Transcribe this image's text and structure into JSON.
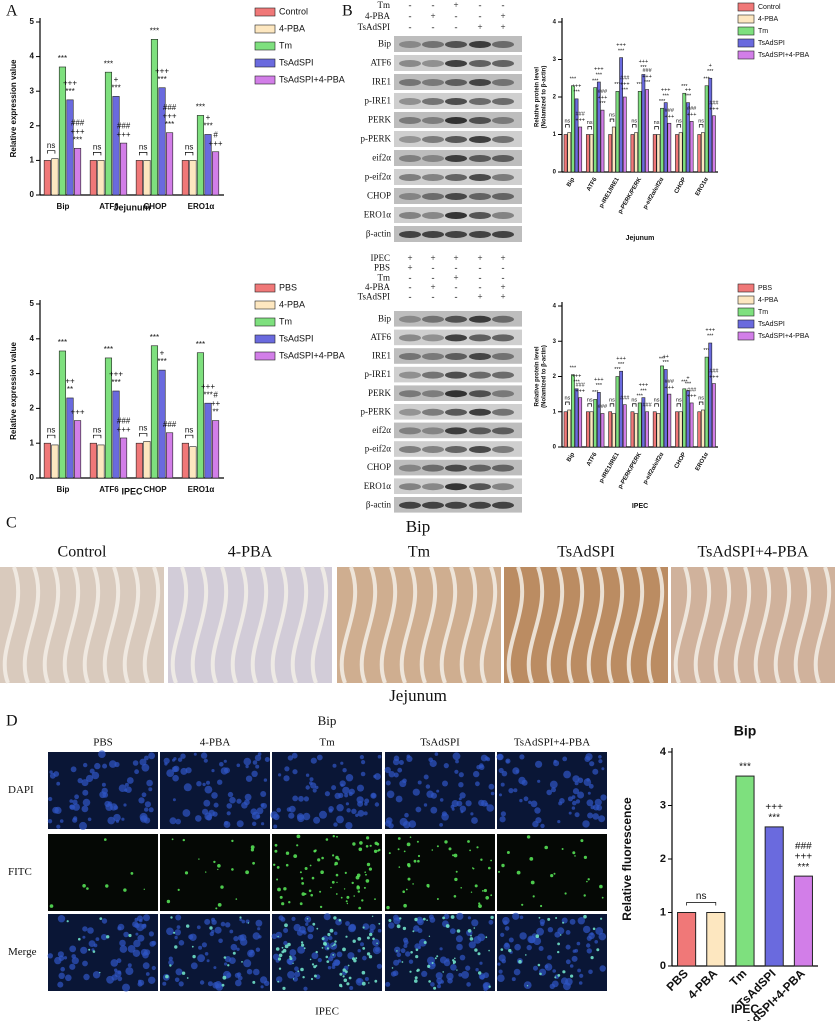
{
  "panel_letters": [
    "A",
    "B",
    "C",
    "D"
  ],
  "chart_data": [
    {
      "type": "bar",
      "ylabel": "Relative expression value",
      "xlabel": "Jejunum",
      "legend": "right",
      "categories": [
        "Bip",
        "ATF6",
        "CHOP",
        "ERO1α"
      ],
      "ylim": [
        0,
        5
      ],
      "yticks": [
        0,
        1,
        2,
        3,
        4,
        5
      ],
      "pair_labels": [
        "ns",
        "ns",
        "ns",
        "ns"
      ],
      "series": [
        {
          "name": "Control",
          "color": "#f07878",
          "values": [
            1,
            1,
            1,
            1
          ],
          "signif": [
            null,
            null,
            null,
            null
          ]
        },
        {
          "name": "4-PBA",
          "color": "#fde7c0",
          "values": [
            1.05,
            1,
            1,
            1
          ],
          "signif": [
            null,
            null,
            null,
            null
          ]
        },
        {
          "name": "Tm",
          "color": "#7ee07e",
          "values": [
            3.7,
            3.55,
            4.5,
            2.3
          ],
          "signif": [
            [
              "***"
            ],
            [
              "***"
            ],
            [
              "***"
            ],
            [
              "***"
            ]
          ]
        },
        {
          "name": "TsAdSPI",
          "color": "#6a6ade",
          "values": [
            2.75,
            2.85,
            3.1,
            1.75
          ],
          "signif": [
            [
              "+++",
              "***"
            ],
            [
              "+",
              "***"
            ],
            [
              "+++",
              "***"
            ],
            [
              "+",
              "***"
            ]
          ]
        },
        {
          "name": "TsAdSPI+4-PBA",
          "color": "#d27ee8",
          "values": [
            1.35,
            1.5,
            1.8,
            1.25
          ],
          "signif": [
            [
              "###",
              "+++",
              "***"
            ],
            [
              "###",
              "+++"
            ],
            [
              "###",
              "+++",
              "***"
            ],
            [
              "#",
              "+++"
            ]
          ]
        }
      ]
    },
    {
      "type": "bar",
      "ylabel": "Relative expression value",
      "xlabel": "IPEC",
      "legend": "right",
      "categories": [
        "Bip",
        "ATF6",
        "CHOP",
        "ERO1α"
      ],
      "ylim": [
        0,
        5
      ],
      "yticks": [
        0,
        1,
        2,
        3,
        4,
        5
      ],
      "pair_labels": [
        "ns",
        "ns",
        "ns",
        "ns"
      ],
      "series": [
        {
          "name": "PBS",
          "color": "#f07878",
          "values": [
            1,
            1,
            1,
            1
          ],
          "signif": [
            null,
            null,
            null,
            null
          ]
        },
        {
          "name": "4-PBA",
          "color": "#fde7c0",
          "values": [
            0.95,
            0.95,
            1.05,
            0.9
          ],
          "signif": [
            null,
            null,
            null,
            null
          ]
        },
        {
          "name": "Tm",
          "color": "#7ee07e",
          "values": [
            3.65,
            3.45,
            3.8,
            3.6
          ],
          "signif": [
            [
              "***"
            ],
            [
              "***"
            ],
            [
              "***"
            ],
            [
              "***"
            ]
          ]
        },
        {
          "name": "TsAdSPI",
          "color": "#6a6ade",
          "values": [
            2.3,
            2.5,
            3.1,
            2.15
          ],
          "signif": [
            [
              "++",
              "**"
            ],
            [
              "+++",
              "***"
            ],
            [
              "+",
              "***"
            ],
            [
              "+++",
              "***"
            ]
          ]
        },
        {
          "name": "TsAdSPI+4-PBA",
          "color": "#d27ee8",
          "values": [
            1.65,
            1.15,
            1.3,
            1.65
          ],
          "signif": [
            [
              "+++"
            ],
            [
              "###",
              "+++"
            ],
            [
              "###"
            ],
            [
              "#",
              "++",
              "**"
            ]
          ]
        }
      ]
    },
    {
      "type": "bar",
      "ylabel": [
        "Relative protein level",
        "(Nolamized to β-actin)"
      ],
      "xlabel": "Jejunum",
      "legend": "right",
      "categories": [
        "Bip",
        "ATF6",
        "p-IRE1/IRE1",
        "p-PERK/PERK",
        "p-eif2α/eif2α",
        "CHOP",
        "ERO1α"
      ],
      "ylim": [
        0,
        4
      ],
      "yticks": [
        0,
        1,
        2,
        3,
        4
      ],
      "pair_labels": [
        "ns",
        "ns",
        "ns",
        "ns",
        "ns",
        "ns",
        "ns"
      ],
      "series": [
        {
          "name": "Control",
          "color": "#f07878",
          "values": [
            1,
            1,
            1,
            1,
            1,
            1,
            1
          ],
          "signif": [
            null,
            null,
            null,
            null,
            null,
            null,
            null
          ]
        },
        {
          "name": "4-PBA",
          "color": "#fde7c0",
          "values": [
            1.05,
            1,
            1.2,
            1.05,
            1,
            1.05,
            1.05
          ],
          "signif": [
            null,
            null,
            null,
            null,
            null,
            null,
            null
          ]
        },
        {
          "name": "Tm",
          "color": "#7ee07e",
          "values": [
            2.3,
            2.25,
            2.15,
            2.15,
            1.7,
            2.1,
            2.3
          ],
          "signif": [
            [
              "***"
            ],
            [
              "***"
            ],
            [
              "***"
            ],
            [
              "***"
            ],
            [
              "***"
            ],
            [
              "***"
            ],
            [
              "***"
            ]
          ]
        },
        {
          "name": "TsAdSPI",
          "color": "#6a6ade",
          "values": [
            1.95,
            2.4,
            3.05,
            2.6,
            1.85,
            1.85,
            2.5
          ],
          "signif": [
            [
              "+++",
              "***"
            ],
            [
              "+++",
              "***"
            ],
            [
              "+++",
              "***"
            ],
            [
              "+++",
              "***"
            ],
            [
              "+++",
              "***"
            ],
            [
              "++",
              "***"
            ],
            [
              "+",
              "***"
            ]
          ]
        },
        {
          "name": "TsAdSPI+4-PBA",
          "color": "#d27ee8",
          "values": [
            1.2,
            1.65,
            2,
            2.2,
            1.3,
            1.35,
            1.5
          ],
          "signif": [
            [
              "###",
              "+++"
            ],
            [
              "###",
              "+++",
              "***"
            ],
            [
              "###",
              "+++",
              "***"
            ],
            [
              "###",
              "+++",
              "***"
            ],
            [
              "###",
              "+++"
            ],
            [
              "###",
              "+++"
            ],
            [
              "###",
              "+++"
            ]
          ]
        }
      ]
    },
    {
      "type": "bar",
      "ylabel": [
        "Relative protein level",
        "(Nolamized to β-actin)"
      ],
      "xlabel": "IPEC",
      "legend": "right",
      "categories": [
        "Bip",
        "ATF6",
        "p-IRE1/IRE1",
        "p-PERK/PERK",
        "p-eif2α/eif2α",
        "CHOP",
        "ERO1α"
      ],
      "ylim": [
        0,
        4
      ],
      "yticks": [
        0,
        1,
        2,
        3,
        4
      ],
      "pair_labels": [
        "ns",
        "ns",
        "ns",
        "ns",
        "ns",
        "ns",
        "ns"
      ],
      "series": [
        {
          "name": "PBS",
          "color": "#f07878",
          "values": [
            1,
            1,
            1,
            1,
            1,
            1,
            1
          ],
          "signif": [
            null,
            null,
            null,
            null,
            null,
            null,
            null
          ]
        },
        {
          "name": "4-PBA",
          "color": "#fde7c0",
          "values": [
            1.05,
            1,
            0.95,
            0.95,
            0.95,
            1,
            1.05
          ],
          "signif": [
            null,
            null,
            null,
            null,
            null,
            null,
            null
          ]
        },
        {
          "name": "Tm",
          "color": "#7ee07e",
          "values": [
            2.05,
            1.35,
            2,
            1.25,
            2.3,
            1.65,
            2.55
          ],
          "signif": [
            [
              "***"
            ],
            [
              "***"
            ],
            [
              "***"
            ],
            [
              "***"
            ],
            [
              "***"
            ],
            [
              "***"
            ],
            [
              "***"
            ]
          ]
        },
        {
          "name": "TsAdSPI",
          "color": "#6a6ade",
          "values": [
            1.65,
            1.55,
            2.15,
            1.4,
            2.2,
            1.6,
            2.95
          ],
          "signif": [
            [
              "+++",
              "***"
            ],
            [
              "+++",
              "***"
            ],
            [
              "+++",
              "***"
            ],
            [
              "+++",
              "***"
            ],
            [
              "++",
              "***"
            ],
            [
              "+",
              "***"
            ],
            [
              "+++",
              "***"
            ]
          ]
        },
        {
          "name": "TsAdSPI+4-PBA",
          "color": "#d27ee8",
          "values": [
            1.4,
            0.95,
            1.2,
            1,
            1.5,
            1.25,
            1.8
          ],
          "signif": [
            [
              "###",
              "+++"
            ],
            [
              "###"
            ],
            [
              "###"
            ],
            [
              "###"
            ],
            [
              "###",
              "+++"
            ],
            [
              "###",
              "+++"
            ],
            [
              "###",
              "+++"
            ]
          ]
        }
      ]
    },
    {
      "type": "bar",
      "title": "Bip",
      "ylabel": "Relative fluorescence",
      "xlabel": "IPEC",
      "categories": [
        "PBS",
        "4-PBA",
        "Tm",
        "TsAdSPI",
        "TsAdSPI+4-PBA"
      ],
      "values": [
        1,
        1,
        3.55,
        2.6,
        1.68
      ],
      "colors": [
        "#f07878",
        "#fde7c0",
        "#7ee07e",
        "#6a6ade",
        "#d27ee8"
      ],
      "signif": [
        null,
        null,
        [
          "***"
        ],
        [
          "+++",
          "***"
        ],
        [
          "###",
          "+++",
          "***"
        ]
      ],
      "pair_label": "ns",
      "ylim": [
        0,
        4
      ],
      "yticks": [
        0,
        1,
        2,
        3,
        4
      ]
    }
  ],
  "blots": [
    {
      "conditions": [
        {
          "name": "Tm",
          "marks": [
            "-",
            "-",
            "+",
            "-",
            "-"
          ]
        },
        {
          "name": "4-PBA",
          "marks": [
            "-",
            "+",
            "-",
            "-",
            "+"
          ]
        },
        {
          "name": "TsAdSPI",
          "marks": [
            "-",
            "-",
            "-",
            "+",
            "+"
          ]
        }
      ],
      "bands": [
        "Bip",
        "ATF6",
        "IRE1",
        "p-IRE1",
        "PERK",
        "p-PERK",
        "eif2α",
        "p-eif2α",
        "CHOP",
        "ERO1α",
        "β-actin"
      ]
    },
    {
      "conditions": [
        {
          "name": "IPEC",
          "marks": [
            "+",
            "+",
            "+",
            "+",
            "+"
          ]
        },
        {
          "name": "PBS",
          "marks": [
            "+",
            "-",
            "-",
            "-",
            "-"
          ]
        },
        {
          "name": "Tm",
          "marks": [
            "-",
            "-",
            "+",
            "-",
            "-"
          ]
        },
        {
          "name": "4-PBA",
          "marks": [
            "-",
            "+",
            "-",
            "-",
            "+"
          ]
        },
        {
          "name": "TsAdSPI",
          "marks": [
            "-",
            "-",
            "-",
            "+",
            "+"
          ]
        }
      ],
      "bands": [
        "Bip",
        "ATF6",
        "IRE1",
        "p-IRE1",
        "PERK",
        "p-PERK",
        "eif2α",
        "p-eif2α",
        "CHOP",
        "ERO1α",
        "β-actin"
      ]
    }
  ],
  "histology": {
    "title": "Bip",
    "footer": "Jejunum",
    "columns": [
      {
        "label": "Control",
        "color": "#d9cabd"
      },
      {
        "label": "4-PBA",
        "color": "#d2ccd8"
      },
      {
        "label": "Tm",
        "color": "#cfae90"
      },
      {
        "label": "TsAdSPI",
        "color": "#bb8c62"
      },
      {
        "label": "TsAdSPI+4-PBA",
        "color": "#d0b29c"
      }
    ]
  },
  "fluorescence": {
    "title": "Bip",
    "footer": "IPEC",
    "columns": [
      "PBS",
      "4-PBA",
      "Tm",
      "TsAdSPI",
      "TsAdSPI+4-PBA"
    ],
    "rows": [
      "DAPI",
      "FITC",
      "Merge"
    ]
  }
}
